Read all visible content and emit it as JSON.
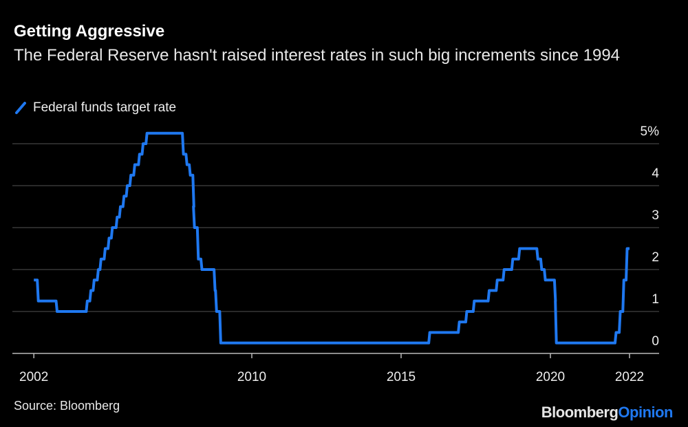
{
  "chart_data": {
    "type": "line",
    "title": "Getting Aggressive",
    "subtitle": "The Federal Reserve hasn't raised interest rates in such big increments since 1994",
    "legend": [
      "Federal funds target rate"
    ],
    "legend_placement": "top-left",
    "source": "Source: Bloomberg",
    "line_color": "#1f78f0",
    "grid": true,
    "ylim": [
      0,
      5
    ],
    "y_ticks": [
      {
        "v": 5,
        "label": "5%"
      },
      {
        "v": 4,
        "label": "4"
      },
      {
        "v": 3,
        "label": "3"
      },
      {
        "v": 2,
        "label": "2"
      },
      {
        "v": 1,
        "label": "1"
      },
      {
        "v": 0,
        "label": "0"
      }
    ],
    "x_ticks": [
      {
        "v": 2002.7,
        "label": "2002"
      },
      {
        "v": 2010,
        "label": "2010"
      },
      {
        "v": 2015,
        "label": "2015"
      },
      {
        "v": 2020,
        "label": "2020"
      },
      {
        "v": 2022.65,
        "label": "2022"
      }
    ],
    "series": [
      {
        "name": "Federal funds target rate",
        "points": [
          [
            2002.7,
            1.75
          ],
          [
            2002.85,
            1.25
          ],
          [
            2003.48,
            1.0
          ],
          [
            2004.49,
            1.25
          ],
          [
            2004.61,
            1.5
          ],
          [
            2004.72,
            1.75
          ],
          [
            2004.86,
            2.0
          ],
          [
            2004.95,
            2.25
          ],
          [
            2005.09,
            2.5
          ],
          [
            2005.22,
            2.75
          ],
          [
            2005.33,
            3.0
          ],
          [
            2005.49,
            3.25
          ],
          [
            2005.6,
            3.5
          ],
          [
            2005.72,
            3.75
          ],
          [
            2005.83,
            4.0
          ],
          [
            2005.95,
            4.25
          ],
          [
            2006.08,
            4.5
          ],
          [
            2006.24,
            4.75
          ],
          [
            2006.36,
            5.0
          ],
          [
            2006.49,
            5.25
          ],
          [
            2007.71,
            4.75
          ],
          [
            2007.83,
            4.5
          ],
          [
            2007.94,
            4.25
          ],
          [
            2008.06,
            3.5
          ],
          [
            2008.08,
            3.0
          ],
          [
            2008.21,
            2.25
          ],
          [
            2008.33,
            2.0
          ],
          [
            2008.77,
            1.5
          ],
          [
            2008.82,
            1.0
          ],
          [
            2008.96,
            0.25
          ],
          [
            2015.96,
            0.5
          ],
          [
            2016.95,
            0.75
          ],
          [
            2017.2,
            1.0
          ],
          [
            2017.45,
            1.25
          ],
          [
            2017.95,
            1.5
          ],
          [
            2018.22,
            1.75
          ],
          [
            2018.45,
            2.0
          ],
          [
            2018.74,
            2.25
          ],
          [
            2018.97,
            2.5
          ],
          [
            2019.58,
            2.25
          ],
          [
            2019.71,
            2.0
          ],
          [
            2019.83,
            1.75
          ],
          [
            2020.17,
            1.25
          ],
          [
            2020.2,
            0.25
          ],
          [
            2022.2,
            0.5
          ],
          [
            2022.34,
            1.0
          ],
          [
            2022.46,
            1.75
          ],
          [
            2022.57,
            2.5
          ],
          [
            2022.65,
            2.5
          ]
        ]
      }
    ]
  },
  "branding": {
    "logo_part1": "Bloomberg",
    "logo_part2": "Opinion"
  }
}
